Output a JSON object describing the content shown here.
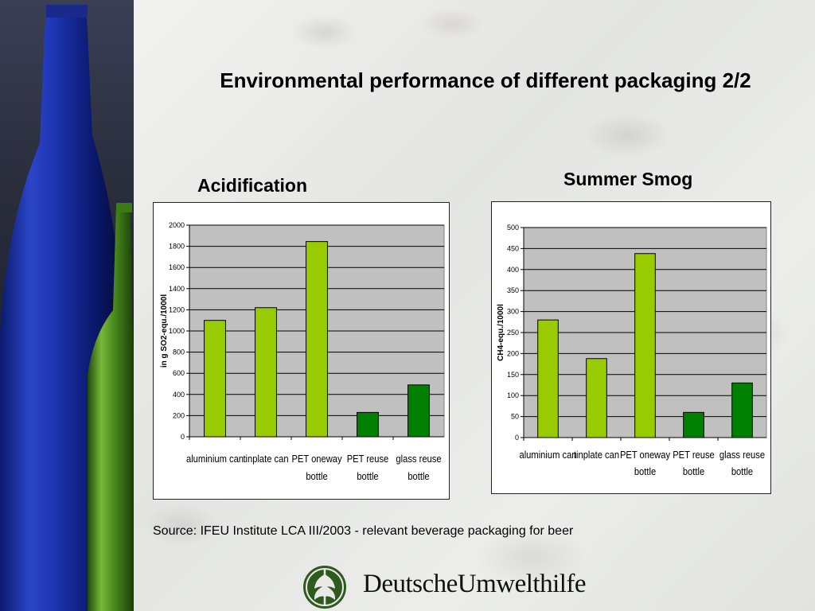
{
  "slide": {
    "title": "Environmental performance of different packaging 2/2",
    "source": "Source: IFEU Institute LCA III/2003 - relevant beverage packaging for beer"
  },
  "logo": {
    "text": "DeutscheUmwelthilfe",
    "icon": "globe-leaf-icon"
  },
  "colors": {
    "light_green": "#99cc00",
    "dark_green": "#008000",
    "plot_bg": "#c0c0c0"
  },
  "chart_data": [
    {
      "id": "acidification",
      "type": "bar",
      "title": "Acidification",
      "ylabel": "in g SO2-equ./1000l",
      "xlabel": "",
      "categories": [
        [
          "aluminium can"
        ],
        [
          "tinplate can"
        ],
        [
          "PET oneway",
          "bottle"
        ],
        [
          "PET reuse",
          "bottle"
        ],
        [
          "glass reuse",
          "bottle"
        ]
      ],
      "values": [
        1100,
        1220,
        1845,
        230,
        490
      ],
      "bar_colors": [
        "#99cc00",
        "#99cc00",
        "#99cc00",
        "#008000",
        "#008000"
      ],
      "ylim": [
        0,
        2000
      ],
      "yticks": [
        0,
        200,
        400,
        600,
        800,
        1000,
        1200,
        1400,
        1600,
        1800,
        2000
      ],
      "grid": true,
      "legend": "none"
    },
    {
      "id": "summer-smog",
      "type": "bar",
      "title": "Summer Smog",
      "ylabel": "CH4-equ./1000l",
      "xlabel": "",
      "categories": [
        [
          "aluminium can"
        ],
        [
          "tinplate can"
        ],
        [
          "PET oneway",
          "bottle"
        ],
        [
          "PET reuse",
          "bottle"
        ],
        [
          "glass reuse",
          "bottle"
        ]
      ],
      "values": [
        280,
        188,
        438,
        60,
        130
      ],
      "bar_colors": [
        "#99cc00",
        "#99cc00",
        "#99cc00",
        "#008000",
        "#008000"
      ],
      "ylim": [
        0,
        500
      ],
      "yticks": [
        0,
        50,
        100,
        150,
        200,
        250,
        300,
        350,
        400,
        450,
        500
      ],
      "grid": true,
      "legend": "none"
    }
  ]
}
